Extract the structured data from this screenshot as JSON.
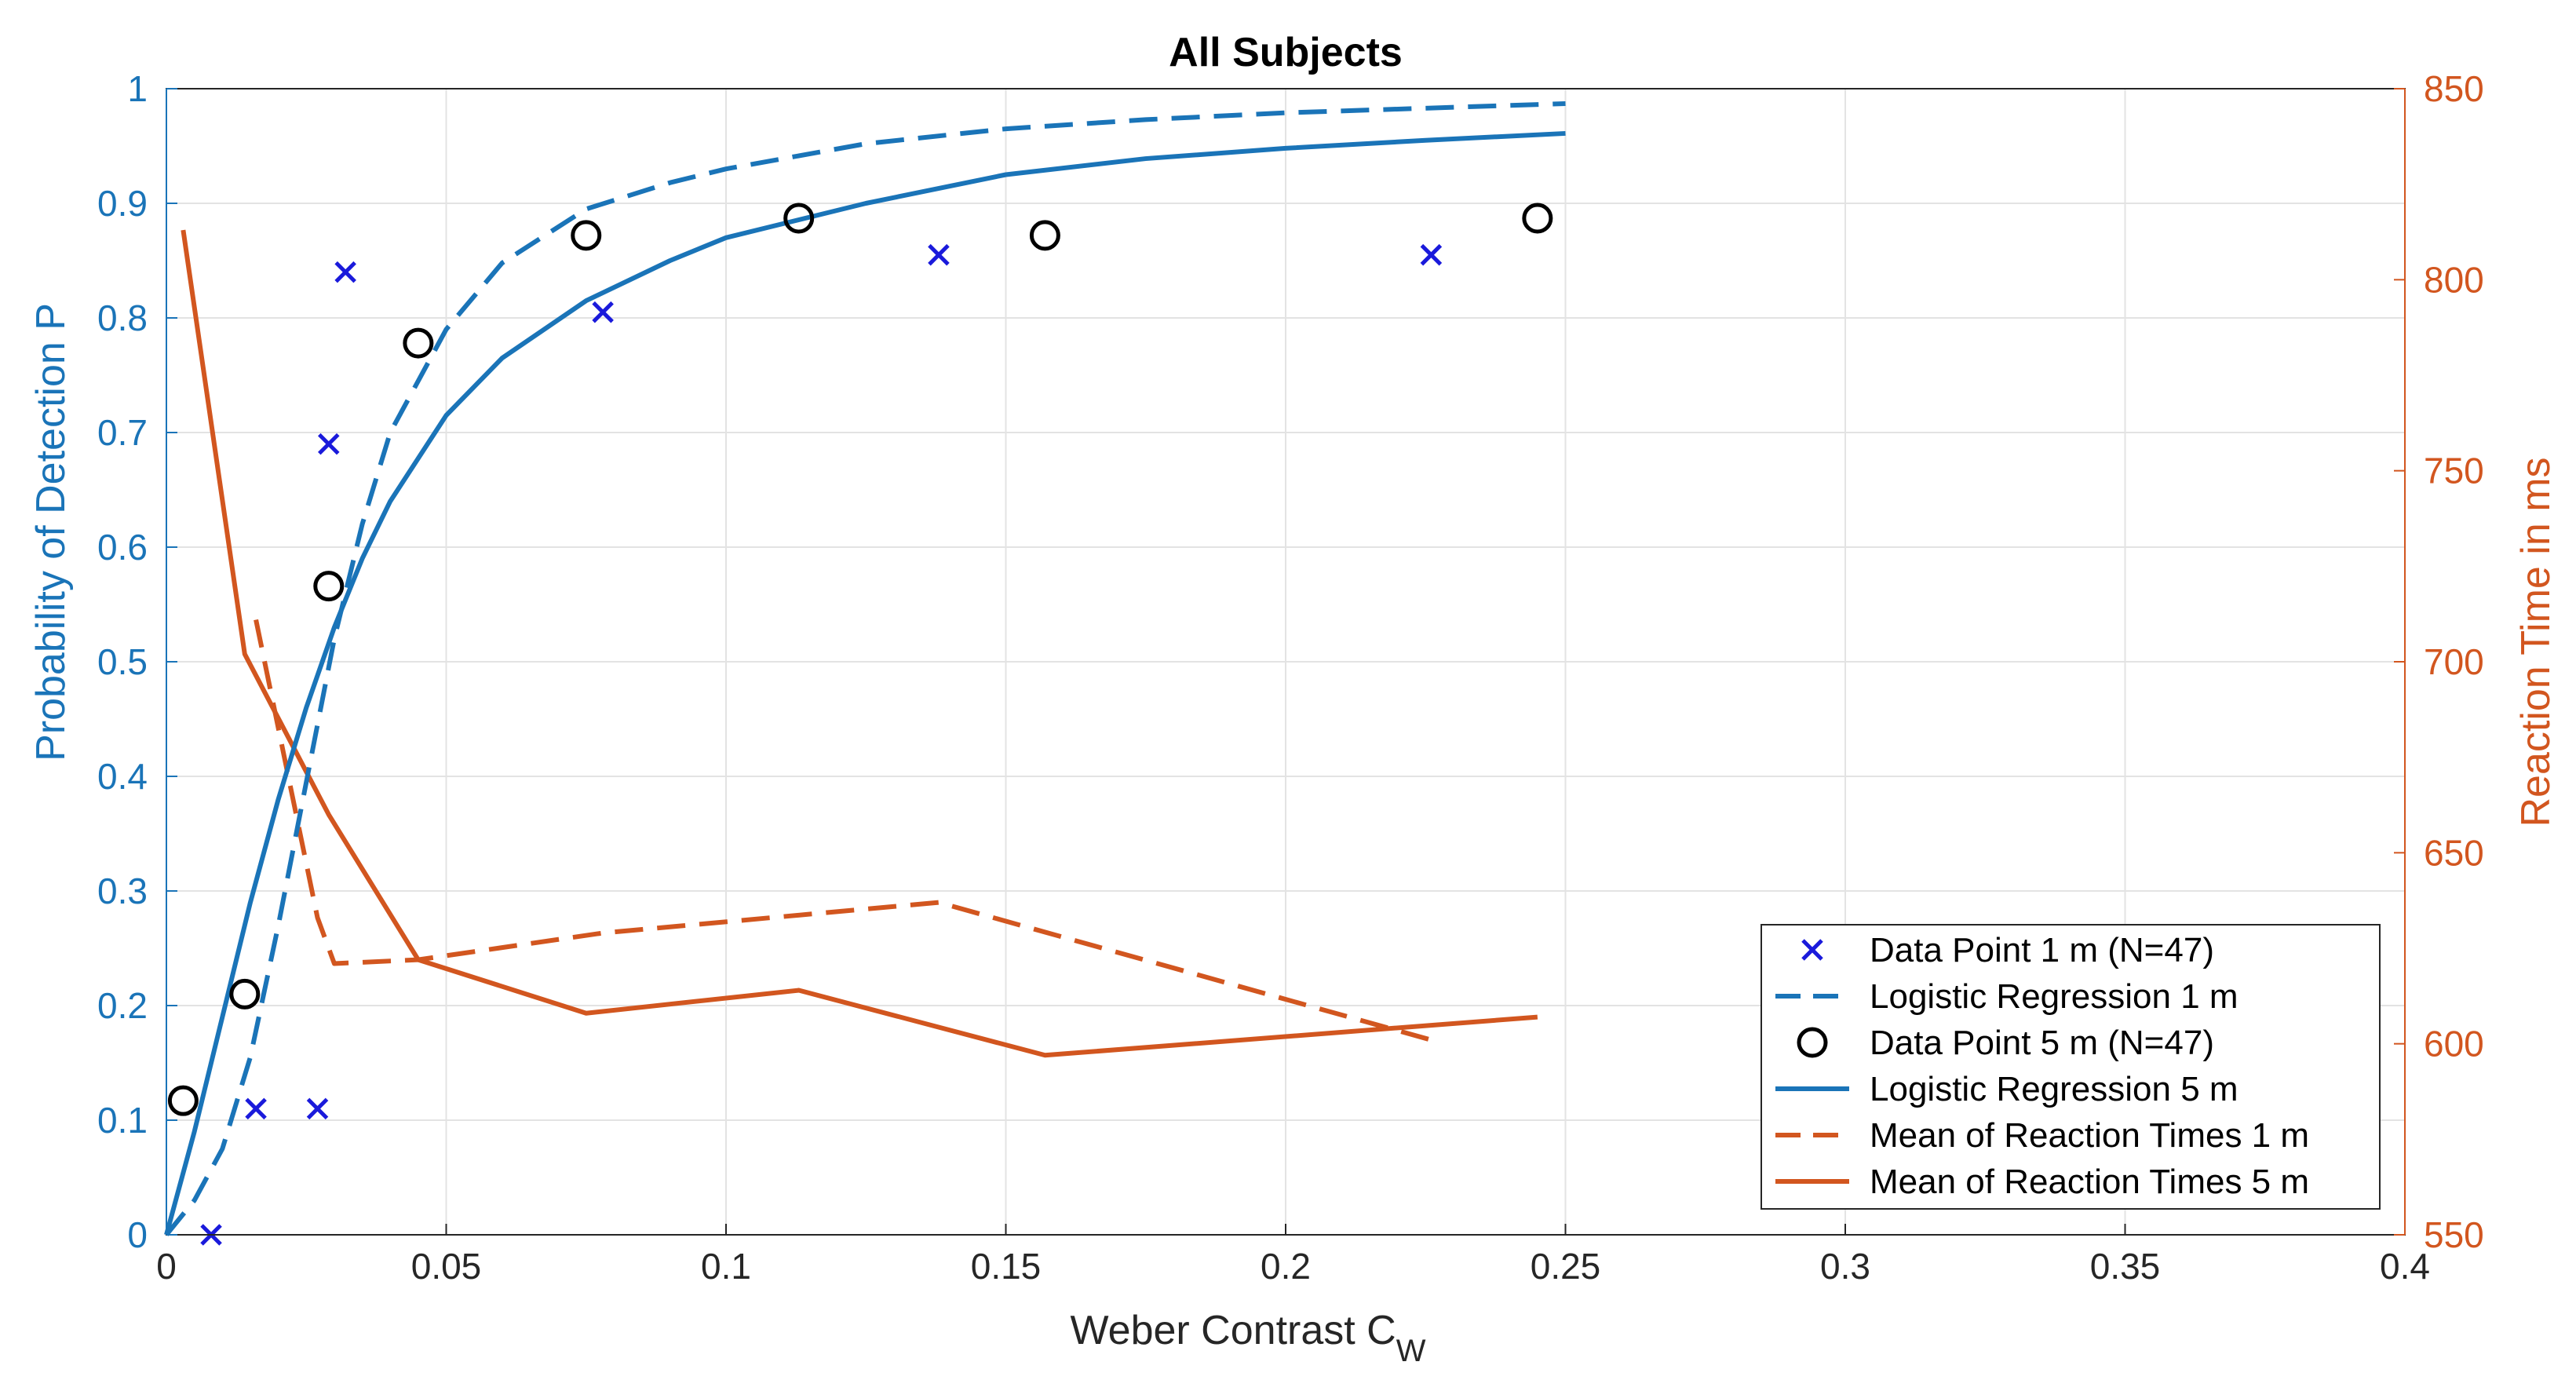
{
  "chart_data": {
    "type": "line",
    "title": "All Subjects",
    "xlabel": "Weber Contrast C",
    "xlabel_subscript": "W",
    "ylabel_left": "Probability of Detection P",
    "ylabel_right": "Reaction Time in ms",
    "xlim": [
      0,
      0.4
    ],
    "ylim_left": [
      0,
      1
    ],
    "ylim_right": [
      550,
      850
    ],
    "xticks": [
      0,
      0.05,
      0.1,
      0.15,
      0.2,
      0.25,
      0.3,
      0.35,
      0.4
    ],
    "xtick_labels": [
      "0",
      "0.05",
      "0.1",
      "0.15",
      "0.2",
      "0.25",
      "0.3",
      "0.35",
      "0.4"
    ],
    "yticks_left": [
      0,
      0.1,
      0.2,
      0.3,
      0.4,
      0.5,
      0.6,
      0.7,
      0.8,
      0.9,
      1
    ],
    "ytick_labels_left": [
      "0",
      "0.1",
      "0.2",
      "0.3",
      "0.4",
      "0.5",
      "0.6",
      "0.7",
      "0.8",
      "0.9",
      "1"
    ],
    "yticks_right": [
      550,
      600,
      650,
      700,
      750,
      800,
      850
    ],
    "ytick_labels_right": [
      "550",
      "600",
      "650",
      "700",
      "750",
      "800",
      "850"
    ],
    "grid": true,
    "legend_position": "bottom-right",
    "colors": {
      "data_1m": "#1a1adb",
      "regression": "#1a74b8",
      "data_5m": "#000000",
      "reaction": "#d2561f",
      "grid": "#e3e3e3",
      "axis": "#262626"
    },
    "series": [
      {
        "name": "Data Point 1 m (N=47)",
        "axis": "left",
        "style": "x-marker",
        "x": [
          0.008,
          0.016,
          0.027,
          0.029,
          0.032,
          0.078,
          0.138,
          0.226
        ],
        "y": [
          0.0,
          0.11,
          0.11,
          0.69,
          0.84,
          0.805,
          0.855,
          0.855
        ]
      },
      {
        "name": "Logistic Regression 1 m",
        "axis": "left",
        "style": "dashed-line",
        "x": [
          0.0,
          0.005,
          0.01,
          0.015,
          0.02,
          0.025,
          0.03,
          0.035,
          0.04,
          0.05,
          0.06,
          0.075,
          0.09,
          0.1,
          0.125,
          0.15,
          0.175,
          0.2,
          0.225,
          0.25
        ],
        "y": [
          0.0,
          0.03,
          0.075,
          0.155,
          0.27,
          0.395,
          0.52,
          0.62,
          0.7,
          0.79,
          0.848,
          0.895,
          0.918,
          0.93,
          0.952,
          0.965,
          0.973,
          0.979,
          0.983,
          0.987
        ]
      },
      {
        "name": "Data Point 5 m (N=47)",
        "axis": "left",
        "style": "o-marker",
        "x": [
          0.003,
          0.014,
          0.029,
          0.045,
          0.075,
          0.113,
          0.157,
          0.245
        ],
        "y": [
          0.117,
          0.21,
          0.566,
          0.778,
          0.872,
          0.887,
          0.872,
          0.887
        ]
      },
      {
        "name": "Logistic Regression 5 m",
        "axis": "left",
        "style": "solid-line",
        "x": [
          0.0,
          0.005,
          0.01,
          0.015,
          0.02,
          0.025,
          0.03,
          0.035,
          0.04,
          0.05,
          0.06,
          0.075,
          0.09,
          0.1,
          0.125,
          0.15,
          0.175,
          0.2,
          0.225,
          0.25
        ],
        "y": [
          0.0,
          0.09,
          0.19,
          0.29,
          0.38,
          0.46,
          0.53,
          0.59,
          0.64,
          0.715,
          0.765,
          0.815,
          0.85,
          0.87,
          0.9,
          0.925,
          0.939,
          0.948,
          0.955,
          0.961
        ]
      },
      {
        "name": "Mean of Reaction Times 1 m",
        "axis": "right",
        "style": "dashed-line",
        "x": [
          0.016,
          0.027,
          0.03,
          0.045,
          0.078,
          0.138,
          0.226
        ],
        "y": [
          711,
          633,
          621,
          622,
          629,
          637,
          601
        ]
      },
      {
        "name": "Mean of Reaction Times 5 m",
        "axis": "right",
        "style": "solid-line",
        "x": [
          0.003,
          0.014,
          0.029,
          0.045,
          0.075,
          0.113,
          0.157,
          0.245
        ],
        "y": [
          813,
          702,
          660,
          622,
          608,
          614,
          597,
          607
        ]
      }
    ]
  }
}
